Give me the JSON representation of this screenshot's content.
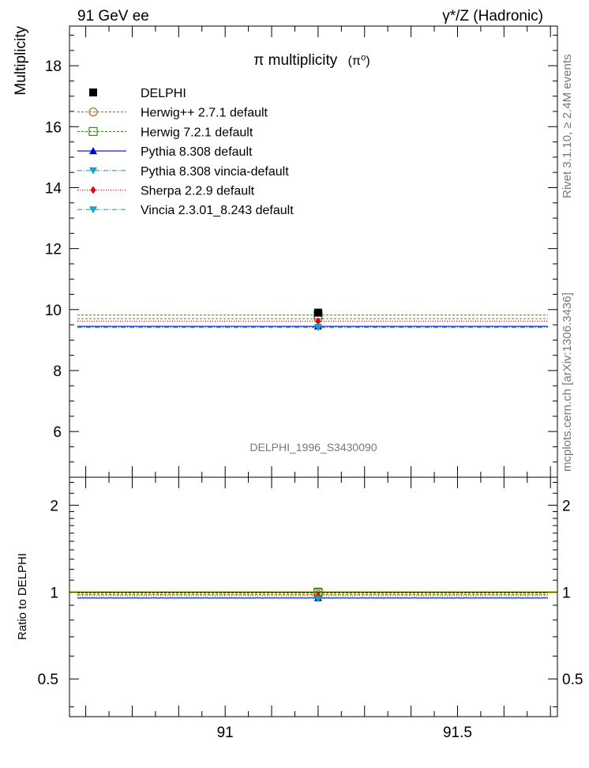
{
  "header": {
    "left": "91 GeV ee",
    "right": "γ*/Z (Hadronic)"
  },
  "side_labels": {
    "rivet": "Rivet 3.1.10, ≥ 2.4M events",
    "mcplots": "mcplots.cern.ch [arXiv:1306.3436]"
  },
  "chart_data": {
    "type": "scatter",
    "title": "π multiplicity",
    "title_suffix": "(π⁰)",
    "watermark": "DELPHI_1996_S3430090",
    "ylabel": "Multiplicity",
    "ratio_ylabel": "Ratio to DELPHI",
    "xlim": [
      90.665,
      91.715
    ],
    "ylim": [
      4.5,
      19.3
    ],
    "ratio_ylim": [
      0.37,
      2.5
    ],
    "x_ticks": [
      {
        "value": 91,
        "label": "91"
      },
      {
        "value": 91.5,
        "label": "91.5"
      }
    ],
    "y_ticks": [
      {
        "value": 6,
        "label": "6"
      },
      {
        "value": 8,
        "label": "8"
      },
      {
        "value": 10,
        "label": "10"
      },
      {
        "value": 12,
        "label": "12"
      },
      {
        "value": 14,
        "label": "14"
      },
      {
        "value": 16,
        "label": "16"
      },
      {
        "value": 18,
        "label": "18"
      }
    ],
    "ratio_ticks": [
      {
        "value": 0.5,
        "label": "0.5"
      },
      {
        "value": 1,
        "label": "1"
      },
      {
        "value": 2,
        "label": "2"
      }
    ],
    "x_point": 91.2,
    "data": {
      "name": "DELPHI",
      "value": 9.9,
      "color": "#000000"
    },
    "series": [
      {
        "name": "Herwig++ 2.7.1 default",
        "value": 9.7,
        "color": "#b5651d",
        "marker": "circle-open",
        "dash": "3,2"
      },
      {
        "name": "Herwig 7.2.1 default",
        "value": 9.82,
        "color": "#3a8a1c",
        "marker": "square-open",
        "dash": "3,2"
      },
      {
        "name": "Pythia 8.308 default",
        "value": 9.45,
        "color": "#0000cc",
        "marker": "triangle-up",
        "dash": ""
      },
      {
        "name": "Pythia 8.308 vincia-default",
        "value": 9.42,
        "color": "#1aa3c4",
        "marker": "triangle-down",
        "dash": "6,2,1,2"
      },
      {
        "name": "Sherpa 2.2.9 default",
        "value": 9.62,
        "color": "#e0001a",
        "marker": "diamond",
        "dash": "1,2"
      },
      {
        "name": "Vincia 2.3.01_8.243 default",
        "value": 9.42,
        "color": "#1aa3c4",
        "marker": "triangle-down",
        "dash": "6,2,1,2"
      }
    ]
  }
}
